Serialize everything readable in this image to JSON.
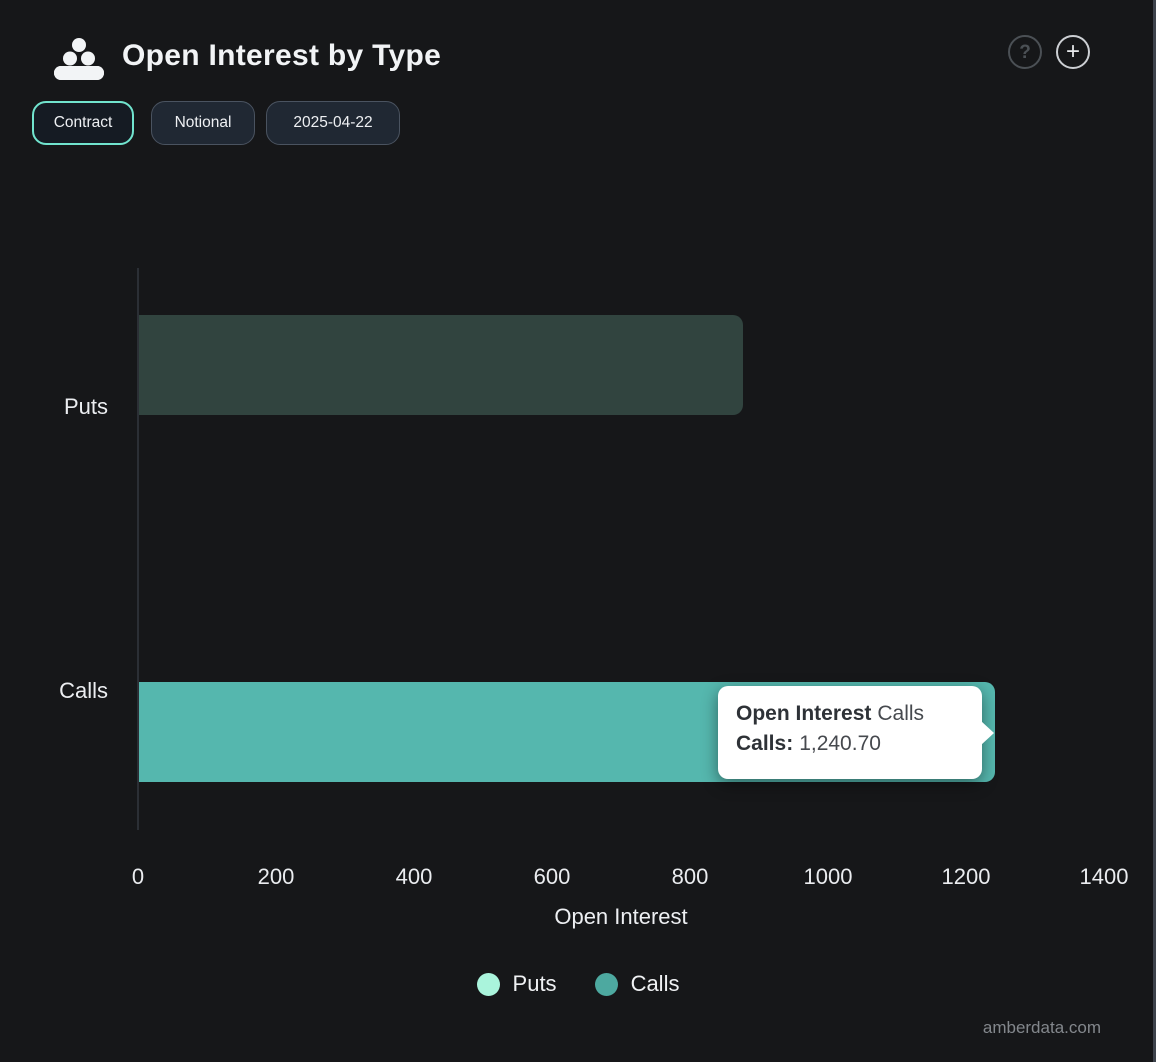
{
  "header": {
    "title": "Open Interest by Type",
    "help_icon": "?",
    "add_icon": "+"
  },
  "toolbar": {
    "contract_label": "Contract",
    "notional_label": "Notional",
    "date_label": "2025-04-22",
    "selected": "Contract"
  },
  "chart_data": {
    "type": "bar",
    "orientation": "horizontal",
    "title": "Open Interest by Type",
    "xlabel": "Open Interest",
    "ylabel": "",
    "categories": [
      "Puts",
      "Calls"
    ],
    "series": [
      {
        "name": "Puts",
        "values": [
          875,
          null
        ],
        "color": "#aaf4dc",
        "rendered_color": "#31443f"
      },
      {
        "name": "Calls",
        "values": [
          null,
          1240.7
        ],
        "color": "#55b7ae",
        "rendered_color": "#55b7ae"
      }
    ],
    "xlim": [
      0,
      1400
    ],
    "xticks": [
      "0",
      "200",
      "400",
      "600",
      "800",
      "1000",
      "1200",
      "1400"
    ],
    "grid": false,
    "legend_position": "bottom"
  },
  "tooltip": {
    "title_bold": "Open Interest",
    "title_rest": "Calls",
    "row_label": "Calls:",
    "row_value": "1,240.70"
  },
  "legend": {
    "items": [
      {
        "label": "Puts",
        "color": "#aaf4dc"
      },
      {
        "label": "Calls",
        "color": "#4da9a0"
      }
    ]
  },
  "watermark": "amberdata.com",
  "colors": {
    "background": "#161719",
    "accent_teal": "#71e4ce",
    "calls_bar": "#55b7ae",
    "puts_bar_dimmed": "#31443f",
    "puts_legend": "#aaf4dc",
    "tooltip_bg": "#ffffff"
  }
}
